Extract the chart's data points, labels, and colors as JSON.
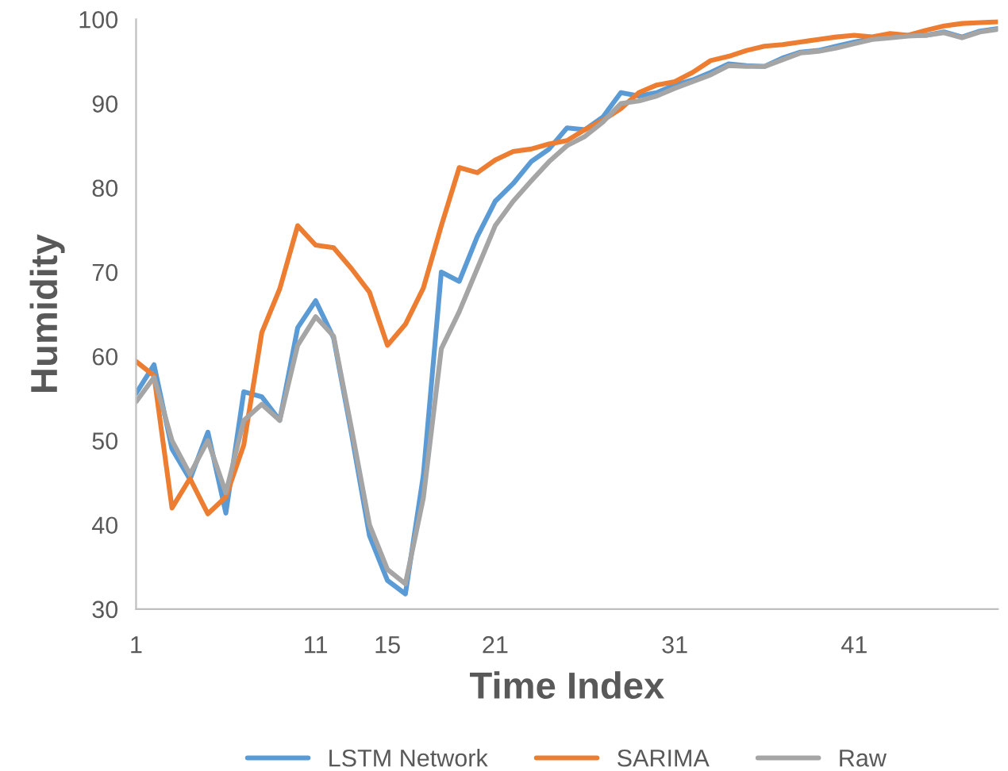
{
  "chart_data": {
    "type": "line",
    "xlabel": "Time Index",
    "ylabel": "Humidity",
    "x": [
      1,
      2,
      3,
      4,
      5,
      6,
      7,
      8,
      9,
      10,
      11,
      12,
      13,
      14,
      15,
      16,
      17,
      18,
      19,
      20,
      21,
      22,
      23,
      24,
      25,
      26,
      27,
      28,
      29,
      30,
      31,
      32,
      33,
      34,
      35,
      36,
      37,
      38,
      39,
      40,
      41,
      42,
      43,
      44,
      45,
      46,
      47,
      48,
      49
    ],
    "series": [
      {
        "name": "LSTM Network",
        "color": "#5b9bd5",
        "values": [
          55.6,
          59,
          49,
          45.4,
          51,
          41.4,
          55.8,
          55.2,
          52.4,
          63.4,
          66.6,
          62.2,
          50.8,
          38.7,
          33.4,
          31.8,
          45.9,
          70,
          68.9,
          74.2,
          78.4,
          80.5,
          83.1,
          84.6,
          87.1,
          86.9,
          88.4,
          91.3,
          90.9,
          91.3,
          92.2,
          92.8,
          93.7,
          94.7,
          94.5,
          94.4,
          95.4,
          96.1,
          96.3,
          96.8,
          97.3,
          97.7,
          97.9,
          98.1,
          98.1,
          98.5,
          97.9,
          98.6,
          98.9
        ]
      },
      {
        "name": "SARIMA",
        "color": "#ed7d31",
        "values": [
          59.4,
          57.7,
          42,
          45.5,
          41.3,
          43.3,
          49.5,
          62.8,
          68,
          75.5,
          73.2,
          72.9,
          70.4,
          67.6,
          61.3,
          63.8,
          68.1,
          75.5,
          82.4,
          81.8,
          83.3,
          84.3,
          84.6,
          85.2,
          85.6,
          86.9,
          88,
          89.4,
          91.3,
          92.2,
          92.6,
          93.7,
          95.1,
          95.6,
          96.3,
          96.8,
          97,
          97.3,
          97.6,
          97.9,
          98.1,
          97.9,
          98.3,
          98.1,
          98.7,
          99.2,
          99.5,
          99.6,
          99.7
        ]
      },
      {
        "name": "Raw",
        "color": "#a5a5a5",
        "values": [
          54.6,
          57.5,
          50,
          46,
          50,
          43.8,
          52.4,
          54.3,
          52.4,
          61.3,
          64.7,
          62.4,
          51.4,
          40,
          34.7,
          33,
          43.2,
          60.9,
          65.3,
          70.4,
          75.5,
          78.4,
          80.8,
          83.1,
          85,
          86.1,
          87.8,
          90,
          90.3,
          90.9,
          91.8,
          92.6,
          93.4,
          94.5,
          94.4,
          94.4,
          95.2,
          96,
          96.2,
          96.6,
          97.1,
          97.6,
          97.8,
          98,
          98.1,
          98.4,
          97.8,
          98.5,
          98.8
        ]
      }
    ],
    "xlim": [
      1,
      49
    ],
    "xticks": [
      1,
      11,
      15,
      21,
      31,
      41
    ],
    "ylim": [
      30,
      100
    ],
    "yticks": [
      30,
      40,
      50,
      60,
      70,
      80,
      90,
      100
    ],
    "grid": false,
    "legend": "bottom",
    "marker": "none",
    "line_style": "solid"
  }
}
